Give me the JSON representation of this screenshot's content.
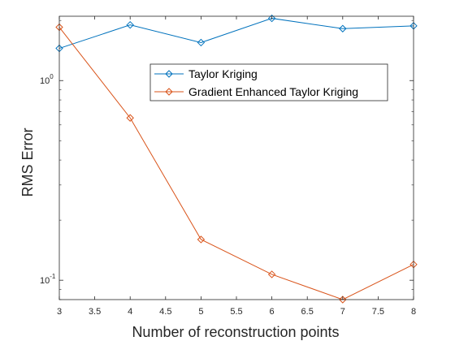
{
  "chart_data": {
    "type": "line",
    "xlabel": "Number of reconstruction points",
    "ylabel": "RMS Error",
    "yscale": "log",
    "xlim": [
      3,
      8
    ],
    "ylim": [
      0.08,
      2.1
    ],
    "grid": false,
    "legend_position": "top-right",
    "x_ticks": [
      {
        "value": 3,
        "label": "3"
      },
      {
        "value": 3.5,
        "label": "3.5"
      },
      {
        "value": 4,
        "label": "4"
      },
      {
        "value": 4.5,
        "label": "4.5"
      },
      {
        "value": 5,
        "label": "5"
      },
      {
        "value": 5.5,
        "label": "5.5"
      },
      {
        "value": 6,
        "label": "6"
      },
      {
        "value": 6.5,
        "label": "6.5"
      },
      {
        "value": 7,
        "label": "7"
      },
      {
        "value": 7.5,
        "label": "7.5"
      },
      {
        "value": 8,
        "label": "8"
      }
    ],
    "y_ticks": [
      {
        "value": 0.1,
        "base": "10",
        "exp": "-1"
      },
      {
        "value": 1,
        "base": "10",
        "exp": "0"
      }
    ],
    "x": [
      3,
      4,
      5,
      6,
      7,
      8
    ],
    "series": [
      {
        "name": "Taylor Kriging",
        "color": "#0072BD",
        "marker": "diamond",
        "values": [
          1.45,
          1.9,
          1.55,
          2.05,
          1.82,
          1.88
        ]
      },
      {
        "name": "Gradient Enhanced Taylor Kriging",
        "color": "#D95319",
        "marker": "diamond",
        "values": [
          1.85,
          0.65,
          0.16,
          0.107,
          0.08,
          0.12
        ]
      }
    ]
  }
}
